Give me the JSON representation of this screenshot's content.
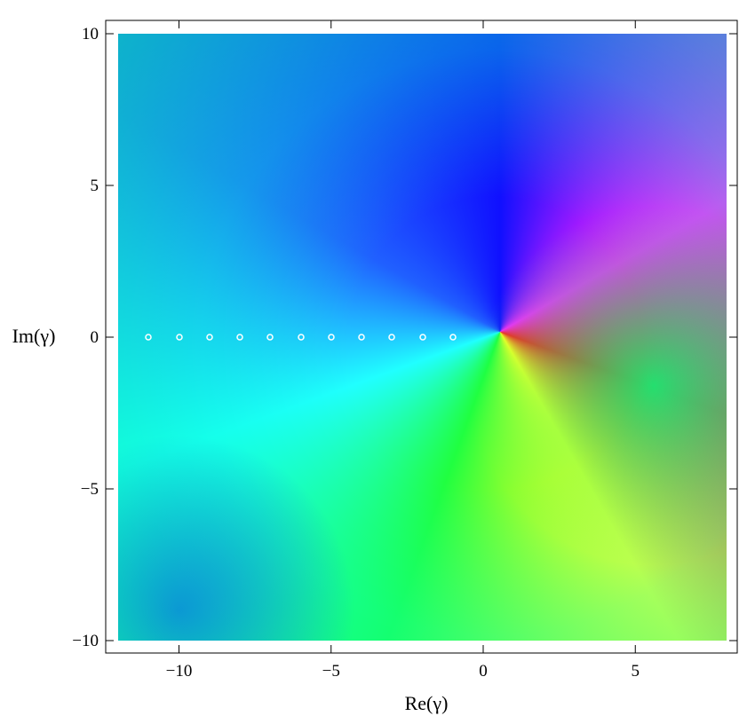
{
  "chart_data": {
    "type": "heatmap",
    "xlabel": "Re(γ)",
    "ylabel": "Im(γ)",
    "xlim": [
      -12,
      8
    ],
    "ylim": [
      -10,
      10
    ],
    "xticks": [
      {
        "value": -10,
        "label": "−10"
      },
      {
        "value": -5,
        "label": "−5"
      },
      0,
      5
    ],
    "yticks": [
      {
        "value": -10,
        "label": "−10"
      },
      {
        "value": -5,
        "label": "−5"
      },
      0,
      5,
      10
    ]
  }
}
